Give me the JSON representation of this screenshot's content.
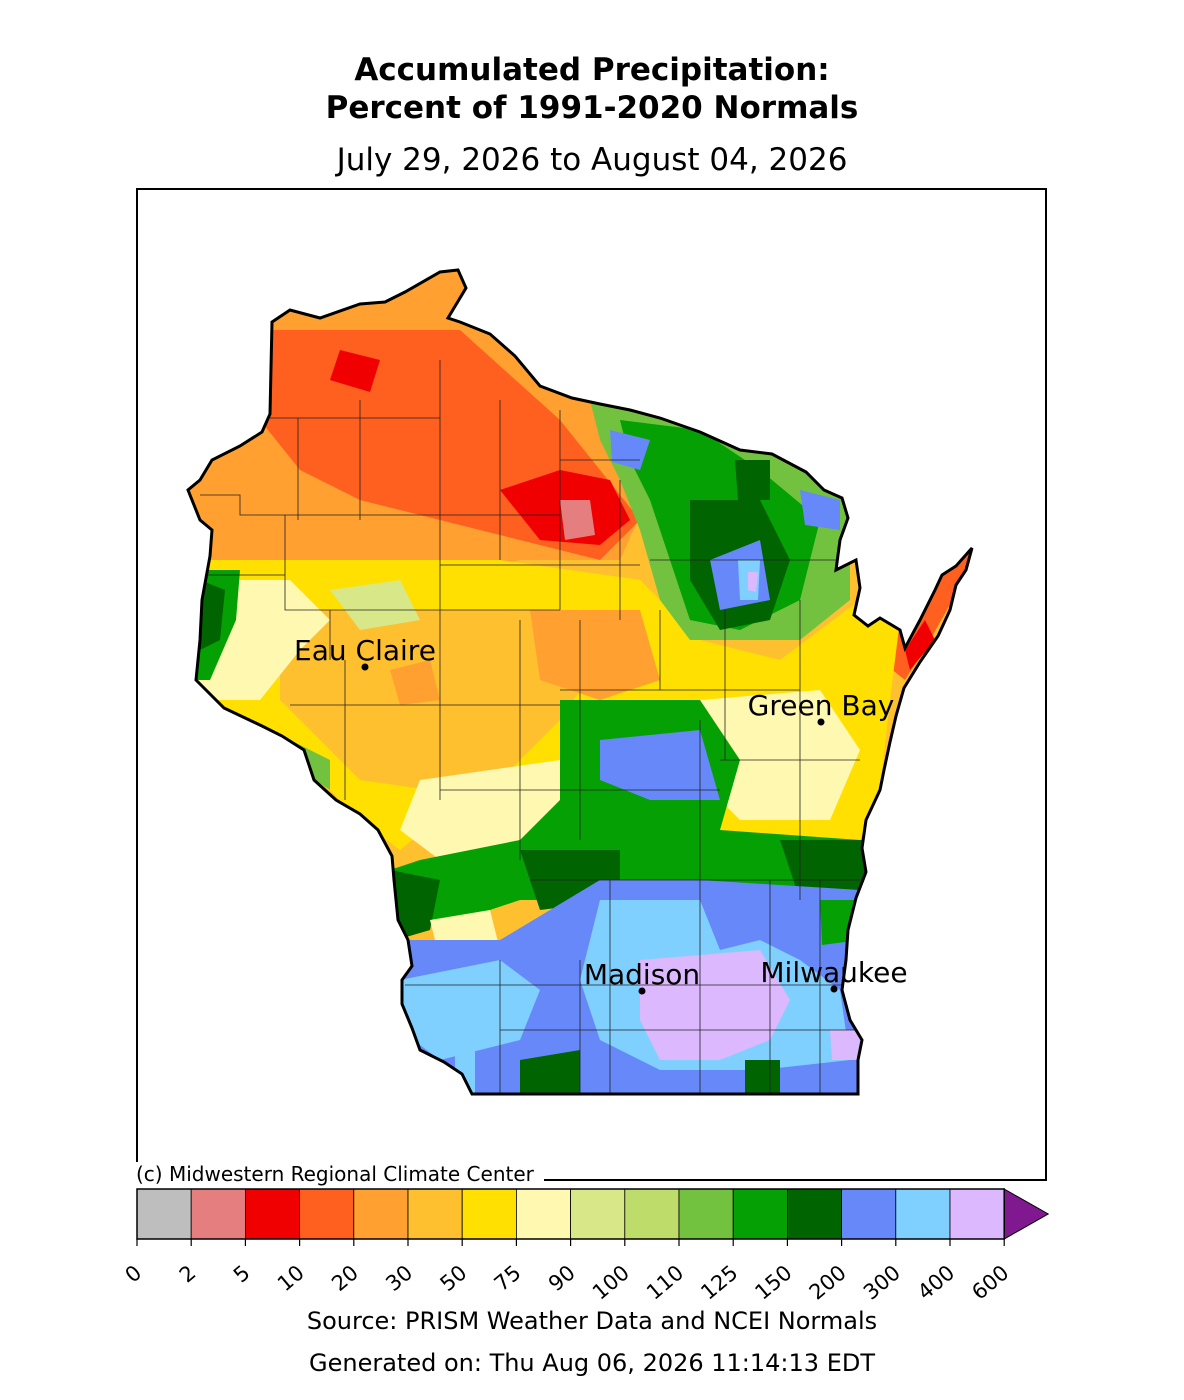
{
  "title_line1": "Accumulated Precipitation:",
  "title_line2": "Percent of 1991-2020 Normals",
  "subtitle": "July 29, 2026 to August 04, 2026",
  "copyright": "(c) Midwestern Regional Climate Center",
  "source": "Source: PRISM Weather Data and NCEI Normals",
  "generated": "Generated on: Thu Aug 06, 2026 11:14:13 EDT",
  "cities": [
    {
      "name": "Eau Claire"
    },
    {
      "name": "Green Bay"
    },
    {
      "name": "Madison"
    },
    {
      "name": "Milwaukee"
    }
  ],
  "legend": {
    "ticks": [
      "0",
      "2",
      "5",
      "10",
      "20",
      "30",
      "50",
      "75",
      "90",
      "100",
      "110",
      "125",
      "150",
      "200",
      "300",
      "400",
      "600"
    ],
    "colors": [
      "#bebebe",
      "#e57f7f",
      "#f00000",
      "#ff6020",
      "#ffa030",
      "#ffc030",
      "#ffe000",
      "#fff8b0",
      "#d8e888",
      "#bedc6a",
      "#72c240",
      "#04a004",
      "#006400",
      "#6688f8",
      "#80d0ff",
      "#dcb8ff"
    ],
    "extend_color": "#801890"
  },
  "region_colors": {
    "dry_orange": "#ff6020",
    "red": "#f00000",
    "pink": "#e57f7f",
    "light_orange": "#ffa030",
    "gold": "#ffc030",
    "yellow": "#ffe000",
    "pale_yellow": "#fff8b0",
    "light_green": "#d8e888",
    "green": "#04a004",
    "dark_green": "#006400",
    "blue": "#6688f8",
    "light_blue": "#80d0ff",
    "lavender": "#dcb8ff"
  }
}
